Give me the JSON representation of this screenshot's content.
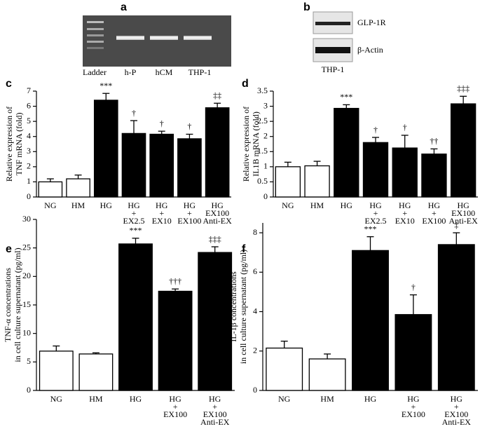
{
  "gel_a": {
    "panel": "a",
    "lanes": [
      "Ladder",
      "h-P",
      "hCM",
      "THP-1"
    ]
  },
  "gel_b": {
    "panel": "b",
    "bands": [
      "GLP-1R",
      "β-Actin"
    ],
    "cell": "THP-1"
  },
  "chart_data": [
    {
      "type": "bar",
      "panel": "c",
      "ylabel": [
        "Relative expression of",
        "TNF mRNA (fold)"
      ],
      "categories": [
        "NG",
        "HM",
        "HG",
        "HG\n+\nEX2.5",
        "HG\n+\nEX10",
        "HG\n+\nEX100",
        "HG\nEX100\nAnti-EX"
      ],
      "values": [
        1.0,
        1.2,
        6.4,
        4.2,
        4.15,
        3.85,
        5.9
      ],
      "errors": [
        0.2,
        0.25,
        0.45,
        0.85,
        0.2,
        0.3,
        0.3
      ],
      "annotations": [
        null,
        null,
        "***",
        "†",
        "†",
        "†",
        "‡‡"
      ],
      "colors": [
        "#ffffff",
        "#ffffff",
        "#000000",
        "#000000",
        "#000000",
        "#000000",
        "#000000"
      ],
      "ylim": [
        0,
        7
      ],
      "yticks": [
        0,
        1,
        2,
        3,
        4,
        5,
        6,
        7
      ]
    },
    {
      "type": "bar",
      "panel": "d",
      "ylabel": [
        "Relative expression of",
        "IL1B mRNA (fold)"
      ],
      "categories": [
        "NG",
        "HM",
        "HG",
        "HG\n+\nEX2.5",
        "HG\n+\nEX10",
        "HG\n+\nEX100",
        "HG\nEX100\nAnti-EX"
      ],
      "values": [
        1.0,
        1.03,
        2.93,
        1.8,
        1.62,
        1.42,
        3.08
      ],
      "errors": [
        0.15,
        0.15,
        0.12,
        0.17,
        0.42,
        0.17,
        0.25
      ],
      "annotations": [
        null,
        null,
        "***",
        "†",
        "†",
        "††",
        "‡‡‡"
      ],
      "colors": [
        "#ffffff",
        "#ffffff",
        "#000000",
        "#000000",
        "#000000",
        "#000000",
        "#000000"
      ],
      "ylim": [
        0,
        3.5
      ],
      "yticks": [
        0,
        0.5,
        1,
        1.5,
        2,
        2.5,
        3,
        3.5
      ]
    },
    {
      "type": "bar",
      "panel": "e",
      "ylabel": [
        "TNF-α concentrations",
        "in cell culture supernatant (pg/ml)"
      ],
      "categories": [
        "NG",
        "HM",
        "HG",
        "HG\n+\nEX100",
        "HG\n+\nEX100\nAnti-EX"
      ],
      "values": [
        6.9,
        6.4,
        25.7,
        17.4,
        24.2
      ],
      "errors": [
        0.9,
        0.2,
        1.0,
        0.4,
        1.0
      ],
      "annotations": [
        null,
        null,
        "***",
        "†††",
        "‡‡‡"
      ],
      "colors": [
        "#ffffff",
        "#ffffff",
        "#000000",
        "#000000",
        "#000000"
      ],
      "ylim": [
        0,
        30
      ],
      "yticks": [
        0,
        5,
        10,
        15,
        20,
        25,
        30
      ]
    },
    {
      "type": "bar",
      "panel": "f",
      "ylabel": [
        "IL-1β concentrations",
        "in cell culture supernatant (pg/ml)"
      ],
      "categories": [
        "NG",
        "HM",
        "HG",
        "HG\n+\nEX100",
        "HG\n+\nEX100\nAnti-EX"
      ],
      "values": [
        2.15,
        1.6,
        7.1,
        3.85,
        7.4
      ],
      "errors": [
        0.35,
        0.25,
        0.7,
        1.0,
        0.6
      ],
      "annotations": [
        null,
        null,
        "***",
        "†",
        "‡"
      ],
      "colors": [
        "#ffffff",
        "#ffffff",
        "#000000",
        "#000000",
        "#000000"
      ],
      "ylim": [
        0,
        8.5
      ],
      "yticks": [
        0,
        2,
        4,
        6,
        8
      ]
    }
  ]
}
